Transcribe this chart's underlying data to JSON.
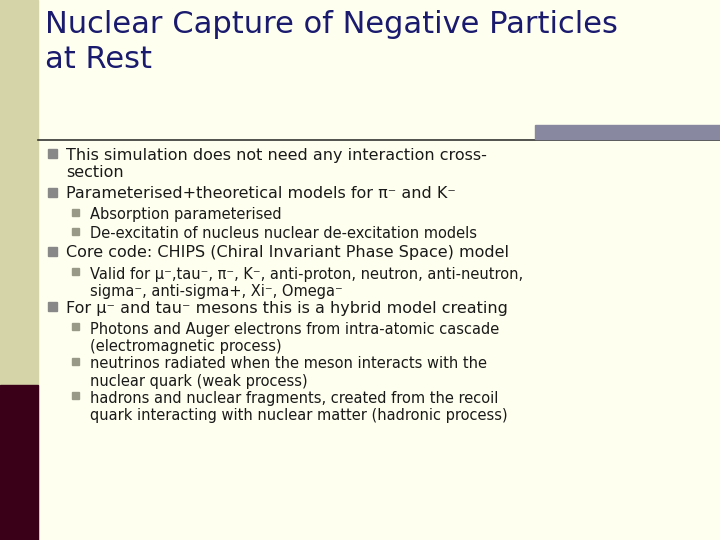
{
  "title": "Nuclear Capture of Negative Particles\nat Rest",
  "bg_color": "#fffff0",
  "left_panel_color": "#d4d4a8",
  "title_color": "#1a1a6e",
  "text_color": "#1a1a1a",
  "bullet_color": "#888888",
  "sub_bullet_color": "#999988",
  "title_bar_color": "#8888a0",
  "left_bar_color": "#3a0018",
  "separator_color": "#333333",
  "title_fontsize": 22,
  "body_fontsize": 11.5,
  "sub_fontsize": 10.5,
  "bullets": [
    {
      "level": 1,
      "text": "This simulation does not need any interaction cross-\nsection",
      "n_lines": 2
    },
    {
      "level": 1,
      "text": "Parameterised+theoretical models for π⁻ and K⁻",
      "n_lines": 1
    },
    {
      "level": 2,
      "text": "Absorption parameterised",
      "n_lines": 1
    },
    {
      "level": 2,
      "text": "De-excitatin of nucleus nuclear de-excitation models",
      "n_lines": 1
    },
    {
      "level": 1,
      "text": "Core code: CHIPS (Chiral Invariant Phase Space) model",
      "n_lines": 1
    },
    {
      "level": 2,
      "text": "Valid for μ⁻,tau⁻, π⁻, K⁻, anti-proton, neutron, anti-neutron,\nsigma⁻, anti-sigma+, Xi⁻, Omega⁻",
      "n_lines": 2
    },
    {
      "level": 1,
      "text": "For μ⁻ and tau⁻ mesons this is a hybrid model creating",
      "n_lines": 1
    },
    {
      "level": 2,
      "text": "Photons and Auger electrons from intra-atomic cascade\n(electromagnetic process)",
      "n_lines": 2
    },
    {
      "level": 2,
      "text": "neutrinos radiated when the meson interacts with the\nnuclear quark (weak process)",
      "n_lines": 2
    },
    {
      "level": 2,
      "text": "hadrons and nuclear fragments, created from the recoil\nquark interacting with nuclear matter (hadronic process)",
      "n_lines": 2
    }
  ]
}
